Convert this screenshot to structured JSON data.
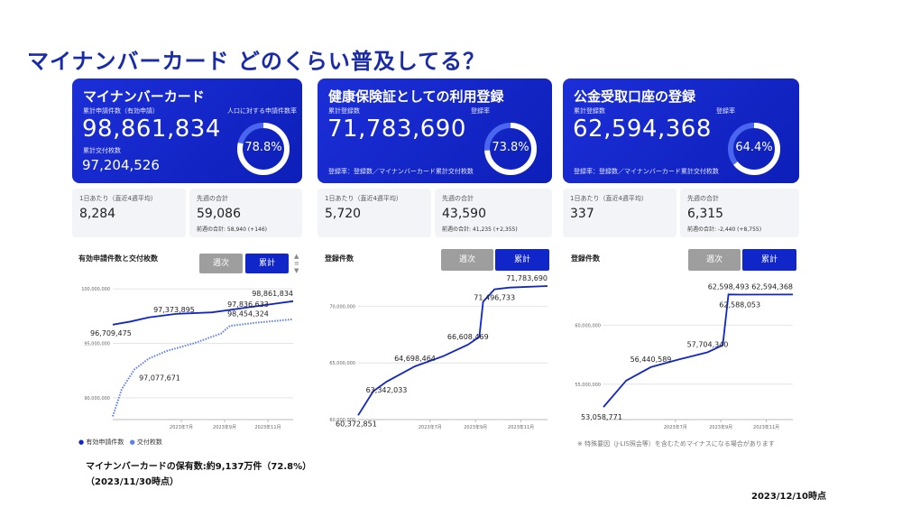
{
  "title": "マイナンバーカード どのくらい普及してる？",
  "cards": [
    {
      "title": "マイナンバーカード",
      "label1": "累計申請件数（有効申請）",
      "value1": "98,861,834",
      "label2": "累計交付枚数",
      "value2": "97,204,526",
      "rate_label": "人口に対する申請件数率",
      "rate": "78.8%",
      "rate_value": 78.8,
      "note": ""
    },
    {
      "title": "健康保険証としての利用登録",
      "label1": "累計登録数",
      "value1": "71,783,690",
      "rate_label": "登録率",
      "rate": "73.8%",
      "rate_value": 73.8,
      "note": "登録率：登録数／マイナンバーカード累計交付枚数"
    },
    {
      "title": "公金受取口座の登録",
      "label1": "累計登録数",
      "value1": "62,594,368",
      "rate_label": "登録率",
      "rate": "64.4%",
      "rate_value": 64.4,
      "note": "登録率：登録数／マイナンバーカード累計交付枚数"
    }
  ],
  "stats": [
    {
      "label": "1日あたり（直近4週平均）",
      "value": "8,284",
      "sub": ""
    },
    {
      "label": "先週の合計",
      "value": "59,086",
      "sub": "前週の合計: 58,940 (+146)"
    },
    {
      "label": "1日あたり（直近4週平均）",
      "value": "5,720",
      "sub": ""
    },
    {
      "label": "先週の合計",
      "value": "43,590",
      "sub": "前週の合計: 41,235 (+2,355)"
    },
    {
      "label": "1日あたり（直近4週平均）",
      "value": "337",
      "sub": ""
    },
    {
      "label": "先週の合計",
      "value": "6,315",
      "sub": "前週の合計: -2,440 (+8,755)"
    }
  ],
  "toggles": {
    "weekly": "週次",
    "cumulative": "累計"
  },
  "charts": {
    "c1_title": "有効申請件数と交付枚数",
    "c2_title": "登録件数",
    "c3_title": "登録件数",
    "legend_applications": "有効申請件数",
    "legend_issued": "交付枚数",
    "c3_footnote": "※ 特殊要因（J-LIS照会等）を含むためマイナスになる場合があります"
  },
  "chart_data": [
    {
      "type": "line",
      "title": "有効申請件数と交付枚数",
      "ylim": [
        88000000,
        101000000
      ],
      "yticks": [
        "100,000,000",
        "95,000,000",
        "90,000,000"
      ],
      "xticks": [
        "2023年7月",
        "2023年9月",
        "2023年11月"
      ],
      "series": [
        {
          "name": "有効申請件数",
          "color": "#1126c8",
          "points": [
            [
              0,
              96709475
            ],
            [
              0.1,
              97000000
            ],
            [
              0.2,
              97373895
            ],
            [
              0.35,
              97700000
            ],
            [
              0.55,
              97836633
            ],
            [
              0.75,
              98300000
            ],
            [
              1,
              98861834
            ]
          ]
        },
        {
          "name": "交付枚数",
          "color": "#5c7ff0",
          "points": [
            [
              0,
              88300000
            ],
            [
              0.05,
              90800000
            ],
            [
              0.12,
              92600000
            ],
            [
              0.2,
              93600000
            ],
            [
              0.3,
              94300000
            ],
            [
              0.45,
              95000000
            ],
            [
              0.55,
              95600000
            ],
            [
              0.6,
              95900000
            ],
            [
              0.65,
              96600000
            ],
            [
              0.8,
              96900000
            ],
            [
              1,
              97204526
            ]
          ]
        }
      ],
      "annotations": [
        "96,709,475",
        "97,373,895",
        "97,077,671",
        "97,836,633",
        "98,454,324",
        "98,861,834"
      ]
    },
    {
      "type": "line",
      "title": "登録件数",
      "ylim": [
        60000000,
        72500000
      ],
      "yticks": [
        "70,000,000",
        "65,000,000",
        "60,000,000"
      ],
      "xticks": [
        "2023年7月",
        "2023年9月",
        "2023年11月"
      ],
      "series": [
        {
          "name": "",
          "color": "#1126c8",
          "points": [
            [
              0,
              60372851
            ],
            [
              0.08,
              62500000
            ],
            [
              0.15,
              63342033
            ],
            [
              0.3,
              64698464
            ],
            [
              0.45,
              65600000
            ],
            [
              0.58,
              66608469
            ],
            [
              0.64,
              67300000
            ],
            [
              0.66,
              70400000
            ],
            [
              0.72,
              71496733
            ],
            [
              0.8,
              71650000
            ],
            [
              1,
              71783690
            ]
          ]
        }
      ],
      "annotations": [
        "60,372,851",
        "63,342,033",
        "64,698,464",
        "66,608,469",
        "71,496,733",
        "71,783,690"
      ]
    },
    {
      "type": "line",
      "title": "登録件数",
      "ylim": [
        52000000,
        64000000
      ],
      "yticks": [
        "60,000,000",
        "55,000,000"
      ],
      "xticks": [
        "2023年7月",
        "2023年9月",
        "2023年11月"
      ],
      "series": [
        {
          "name": "",
          "color": "#1126c8",
          "points": [
            [
              0,
              53058771
            ],
            [
              0.12,
              55300000
            ],
            [
              0.25,
              56440589
            ],
            [
              0.4,
              57100000
            ],
            [
              0.55,
              57704340
            ],
            [
              0.63,
              58300000
            ],
            [
              0.66,
              62598493
            ],
            [
              0.72,
              62588053
            ],
            [
              1,
              62594368
            ]
          ]
        }
      ],
      "annotations": [
        "53,058,771",
        "56,440,589",
        "57,704,340",
        "62,598,493",
        "62,588,053",
        "62,594,368"
      ]
    }
  ],
  "footer": {
    "line1": "マイナンバーカードの保有数:約9,137万件（72.8%）",
    "line2": "（2023/11/30時点）",
    "date": "2023/12/10時点"
  }
}
